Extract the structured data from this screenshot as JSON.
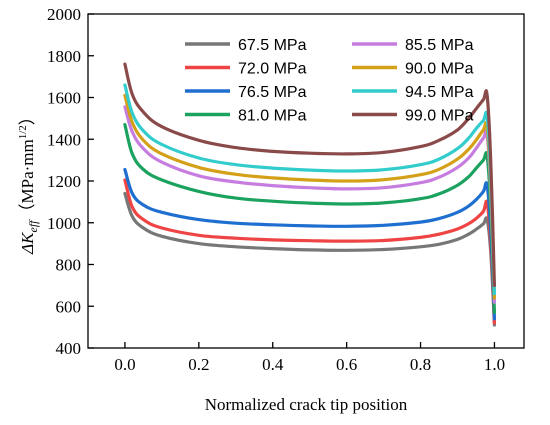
{
  "chart_data": {
    "type": "line",
    "xlabel": "Normalized crack tip position",
    "ylabel": {
      "symbol": "ΔK",
      "subscript": "eff",
      "unit_open": "（MPa·mm",
      "unit_exp": "1/2",
      "unit_close": "）"
    },
    "xlim": [
      -0.1,
      1.08
    ],
    "ylim": [
      400,
      2000
    ],
    "xticks": [
      "0.0",
      "0.2",
      "0.4",
      "0.6",
      "0.8",
      "1.0"
    ],
    "yticks": [
      "400",
      "600",
      "800",
      "1000",
      "1200",
      "1400",
      "1600",
      "1800",
      "2000"
    ],
    "grid": false,
    "legend_position": "top",
    "x": [
      0.0,
      0.02,
      0.05,
      0.1,
      0.2,
      0.3,
      0.4,
      0.5,
      0.6,
      0.7,
      0.8,
      0.85,
      0.9,
      0.93,
      0.95,
      0.97,
      0.98,
      0.99,
      1.0
    ],
    "series": [
      {
        "name": "67.5 MPa",
        "color": "#777777",
        "values": [
          1140,
          1030,
          975,
          935,
          900,
          885,
          876,
          870,
          868,
          872,
          885,
          897,
          920,
          945,
          968,
          995,
          1015,
          860,
          510
        ]
      },
      {
        "name": "72.0 MPa",
        "color": "#ee4444",
        "values": [
          1205,
          1075,
          1015,
          975,
          940,
          926,
          918,
          914,
          912,
          915,
          930,
          945,
          970,
          995,
          1020,
          1055,
          1095,
          900,
          520
        ]
      },
      {
        "name": "76.5 MPa",
        "color": "#1e6fd0",
        "values": [
          1255,
          1140,
          1085,
          1050,
          1015,
          998,
          990,
          985,
          983,
          988,
          1003,
          1020,
          1050,
          1080,
          1110,
          1150,
          1180,
          960,
          540
        ]
      },
      {
        "name": "81.0 MPa",
        "color": "#1aa25e",
        "values": [
          1470,
          1330,
          1255,
          1205,
          1150,
          1118,
          1103,
          1094,
          1090,
          1095,
          1115,
          1138,
          1180,
          1220,
          1260,
          1300,
          1320,
          1070,
          570
        ]
      },
      {
        "name": "85.5 MPa",
        "color": "#c77de0",
        "values": [
          1555,
          1435,
          1355,
          1290,
          1225,
          1195,
          1178,
          1168,
          1162,
          1168,
          1192,
          1218,
          1265,
          1310,
          1355,
          1405,
          1420,
          1150,
          620
        ]
      },
      {
        "name": "90.0 MPa",
        "color": "#d4a017",
        "values": [
          1610,
          1480,
          1395,
          1330,
          1265,
          1232,
          1215,
          1205,
          1200,
          1206,
          1230,
          1256,
          1305,
          1352,
          1395,
          1445,
          1460,
          1180,
          640
        ]
      },
      {
        "name": "94.5 MPa",
        "color": "#33cccc",
        "values": [
          1660,
          1525,
          1440,
          1375,
          1310,
          1278,
          1262,
          1252,
          1248,
          1254,
          1278,
          1305,
          1355,
          1405,
          1450,
          1490,
          1510,
          1220,
          660
        ]
      },
      {
        "name": "99.0 MPa",
        "color": "#8b4a4a",
        "values": [
          1760,
          1615,
          1530,
          1460,
          1395,
          1360,
          1342,
          1333,
          1330,
          1337,
          1365,
          1395,
          1445,
          1500,
          1545,
          1590,
          1612,
          1300,
          700
        ]
      }
    ]
  }
}
